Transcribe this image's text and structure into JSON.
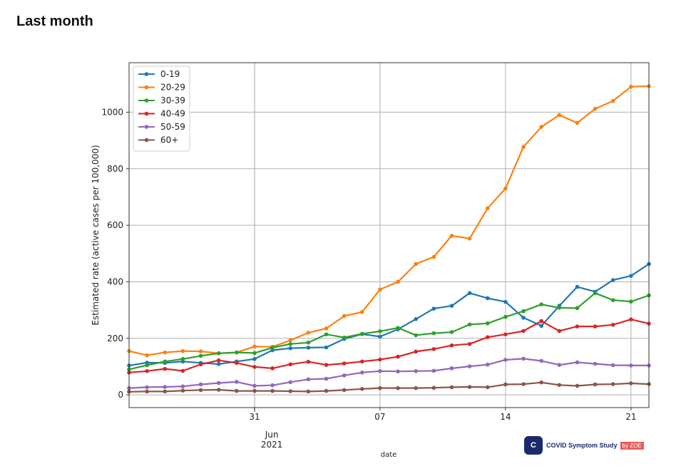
{
  "page_title": "Last month",
  "logo": {
    "mark": "C",
    "text": "COVID Symptom Study",
    "by": "by ZOE"
  },
  "chart_data": {
    "type": "line",
    "title": "",
    "xlabel": "date",
    "ylabel": "Estimated rate (active cases per 100,000)",
    "x_range": [
      "2021-05-24",
      "2021-06-22"
    ],
    "ylim": [
      -45,
      1175
    ],
    "grid": true,
    "legend_position": "top-left",
    "x_ticks": [
      {
        "date": "2021-05-31",
        "label": "31"
      },
      {
        "date": "2021-06-07",
        "label": "07"
      },
      {
        "date": "2021-06-14",
        "label": "14"
      },
      {
        "date": "2021-06-21",
        "label": "21"
      }
    ],
    "x_secondary_label": {
      "date": "2021-06-01",
      "line1": "Jun",
      "line2": "2021"
    },
    "y_ticks": [
      0,
      200,
      400,
      600,
      800,
      1000
    ],
    "x": [
      "2021-05-24",
      "2021-05-25",
      "2021-05-26",
      "2021-05-27",
      "2021-05-28",
      "2021-05-29",
      "2021-05-30",
      "2021-05-31",
      "2021-06-01",
      "2021-06-02",
      "2021-06-03",
      "2021-06-04",
      "2021-06-05",
      "2021-06-06",
      "2021-06-07",
      "2021-06-08",
      "2021-06-09",
      "2021-06-10",
      "2021-06-11",
      "2021-06-12",
      "2021-06-13",
      "2021-06-14",
      "2021-06-15",
      "2021-06-16",
      "2021-06-17",
      "2021-06-18",
      "2021-06-19",
      "2021-06-20",
      "2021-06-21",
      "2021-06-22"
    ],
    "series": [
      {
        "name": "0-19",
        "color": "#1f77b4",
        "values": [
          104,
          114,
          113,
          118,
          113,
          109,
          118,
          127,
          158,
          165,
          167,
          168,
          198,
          215,
          206,
          232,
          268,
          305,
          315,
          360,
          342,
          329,
          273,
          244,
          315,
          382,
          365,
          406,
          421,
          463
        ]
      },
      {
        "name": "20-29",
        "color": "#ff7f0e",
        "values": [
          155,
          140,
          150,
          155,
          154,
          147,
          150,
          171,
          170,
          193,
          220,
          235,
          279,
          293,
          373,
          400,
          463,
          488,
          563,
          553,
          660,
          730,
          877,
          948,
          990,
          962,
          1012,
          1040,
          1090,
          1092
        ]
      },
      {
        "name": "30-39",
        "color": "#2ca02c",
        "values": [
          90,
          105,
          118,
          127,
          138,
          147,
          150,
          148,
          167,
          180,
          185,
          214,
          203,
          216,
          225,
          237,
          211,
          218,
          222,
          249,
          253,
          276,
          296,
          320,
          308,
          307,
          360,
          335,
          330,
          352
        ]
      },
      {
        "name": "40-49",
        "color": "#d62728",
        "values": [
          79,
          84,
          92,
          85,
          108,
          122,
          113,
          99,
          94,
          108,
          117,
          106,
          111,
          118,
          125,
          135,
          153,
          162,
          175,
          180,
          204,
          214,
          226,
          261,
          226,
          242,
          242,
          248,
          267,
          252
        ]
      },
      {
        "name": "50-59",
        "color": "#9467bd",
        "values": [
          24,
          27,
          28,
          30,
          37,
          42,
          46,
          32,
          34,
          45,
          55,
          57,
          69,
          79,
          84,
          83,
          84,
          85,
          94,
          101,
          107,
          124,
          128,
          120,
          106,
          115,
          110,
          105,
          104,
          104
        ]
      },
      {
        "name": "60+",
        "color": "#8c564b",
        "values": [
          11,
          12,
          12,
          15,
          17,
          18,
          14,
          14,
          14,
          13,
          12,
          14,
          17,
          21,
          24,
          24,
          24,
          25,
          27,
          28,
          27,
          37,
          38,
          44,
          35,
          32,
          37,
          38,
          41,
          38
        ]
      }
    ]
  }
}
